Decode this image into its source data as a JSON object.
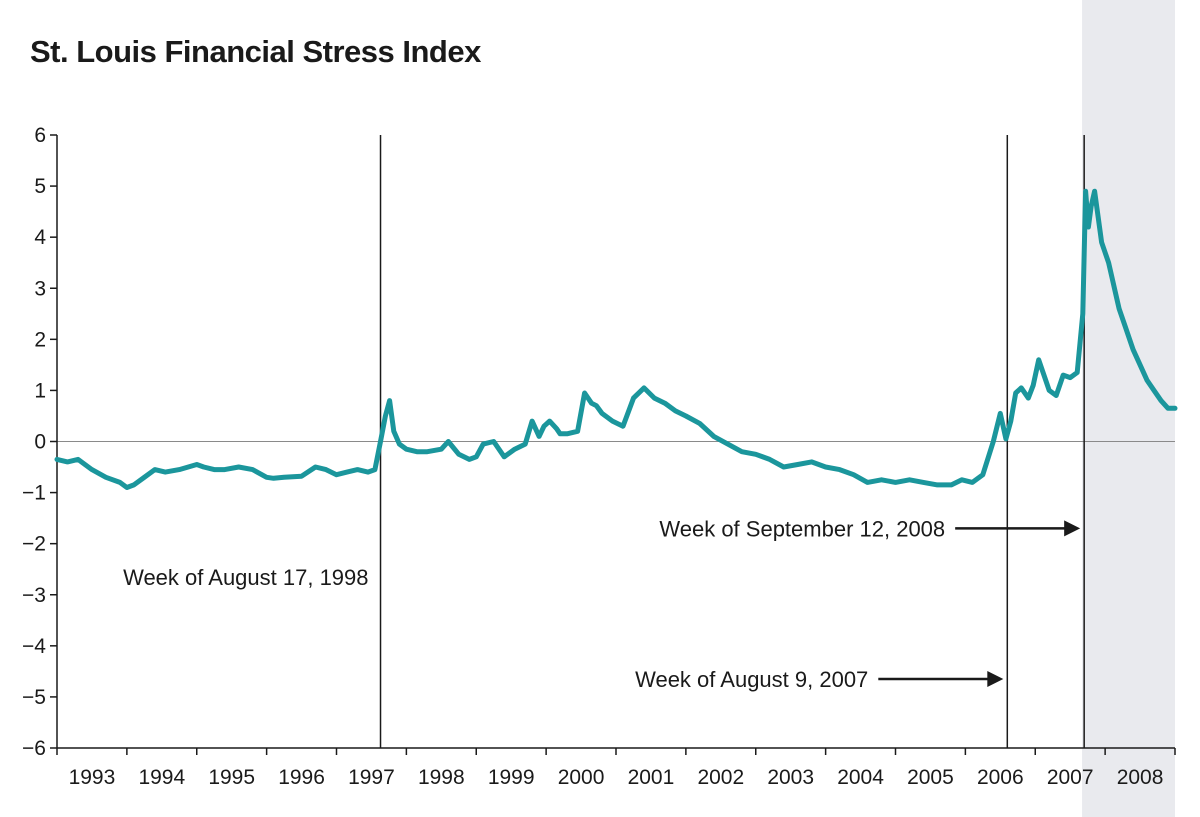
{
  "chart_data": {
    "type": "line",
    "title": "St. Louis Financial Stress Index",
    "xlabel": "",
    "ylabel": "",
    "xlim": [
      1993.0,
      2009.0
    ],
    "ylim": [
      -6,
      6
    ],
    "y_ticks": [
      6,
      5,
      4,
      3,
      2,
      1,
      0,
      -1,
      -2,
      -3,
      -4,
      -5,
      -6
    ],
    "y_tick_labels": [
      "6",
      "5",
      "4",
      "3",
      "2",
      "1",
      "0",
      "−1",
      "−2",
      "−3",
      "−4",
      "−5",
      "−6"
    ],
    "x_tick_labels": [
      "1993",
      "1994",
      "1995",
      "1996",
      "1997",
      "1998",
      "1999",
      "2000",
      "2001",
      "2002",
      "2003",
      "2004",
      "2005",
      "2006",
      "2007",
      "2008"
    ],
    "grid": false,
    "legend": "none",
    "colors": {
      "line": "#1b969c",
      "shade": "#e9eaee",
      "axis": "#1a1a1a",
      "zero_line": "#8a8a8a"
    },
    "shaded_region": {
      "start": 2007.67,
      "end": 2009.0
    },
    "event_lines": [
      {
        "x": 1997.63,
        "label": "Week of August 17, 1998",
        "label_side": "left",
        "label_y": -2.65
      },
      {
        "x": 2006.6,
        "label": "Week of August 9, 2007",
        "label_side": "left",
        "arrow": true,
        "label_y": -4.65
      },
      {
        "x": 2007.7,
        "label": "Week of September 12, 2008",
        "label_side": "left",
        "arrow": true,
        "label_y": -1.7
      }
    ],
    "series": [
      {
        "x": [
          1993.0,
          1993.15,
          1993.3,
          1993.5,
          1993.7,
          1993.9,
          1994.0,
          1994.1,
          1994.25,
          1994.4,
          1994.55,
          1994.75,
          1995.0,
          1995.1,
          1995.25,
          1995.4,
          1995.6,
          1995.8,
          1996.0,
          1996.1,
          1996.25,
          1996.5,
          1996.7,
          1996.85,
          1997.0,
          1997.15,
          1997.3,
          1997.45,
          1997.55,
          1997.63,
          1997.7,
          1997.76,
          1997.82,
          1997.9,
          1998.0,
          1998.15,
          1998.3,
          1998.5,
          1998.6,
          1998.75,
          1998.9,
          1999.0,
          1999.1,
          1999.25,
          1999.4,
          1999.55,
          1999.7,
          1999.8,
          1999.9,
          1999.97,
          2000.05,
          2000.15,
          2000.2,
          2000.3,
          2000.45,
          2000.55,
          2000.65,
          2000.72,
          2000.8,
          2000.95,
          2001.1,
          2001.25,
          2001.4,
          2001.55,
          2001.7,
          2001.85,
          2002.0,
          2002.2,
          2002.4,
          2002.6,
          2002.8,
          2003.0,
          2003.2,
          2003.4,
          2003.6,
          2003.8,
          2004.0,
          2004.2,
          2004.4,
          2004.6,
          2004.8,
          2005.0,
          2005.2,
          2005.4,
          2005.6,
          2005.8,
          2005.95,
          2006.1,
          2006.25,
          2006.4,
          2006.5,
          2006.58,
          2006.65,
          2006.72,
          2006.8,
          2006.9,
          2006.97,
          2007.05,
          2007.15,
          2007.2,
          2007.3,
          2007.4,
          2007.5,
          2007.6,
          2007.68,
          2007.72,
          2007.76,
          2007.8,
          2007.85,
          2007.9,
          2007.95,
          2008.0,
          2008.05,
          2008.1,
          2008.15,
          2008.2,
          2008.3,
          2008.4,
          2008.5,
          2008.6,
          2008.7,
          2008.8,
          2008.9,
          2009.0
        ],
        "y": [
          -0.35,
          -0.4,
          -0.35,
          -0.55,
          -0.7,
          -0.8,
          -0.9,
          -0.85,
          -0.7,
          -0.55,
          -0.6,
          -0.55,
          -0.45,
          -0.5,
          -0.55,
          -0.55,
          -0.5,
          -0.55,
          -0.7,
          -0.72,
          -0.7,
          -0.68,
          -0.5,
          -0.55,
          -0.65,
          -0.6,
          -0.55,
          -0.6,
          -0.55,
          0.0,
          0.5,
          0.8,
          0.2,
          -0.05,
          -0.15,
          -0.2,
          -0.2,
          -0.15,
          0.0,
          -0.25,
          -0.35,
          -0.3,
          -0.05,
          0.0,
          -0.3,
          -0.15,
          -0.05,
          0.4,
          0.1,
          0.3,
          0.4,
          0.25,
          0.15,
          0.15,
          0.2,
          0.95,
          0.75,
          0.7,
          0.55,
          0.4,
          0.3,
          0.85,
          1.05,
          0.85,
          0.75,
          0.6,
          0.5,
          0.35,
          0.1,
          -0.05,
          -0.2,
          -0.25,
          -0.35,
          -0.5,
          -0.45,
          -0.4,
          -0.5,
          -0.55,
          -0.65,
          -0.8,
          -0.75,
          -0.8,
          -0.75,
          -0.8,
          -0.85,
          -0.85,
          -0.75,
          -0.8,
          -0.65,
          0.0,
          0.55,
          0.05,
          0.4,
          0.95,
          1.05,
          0.85,
          1.1,
          1.6,
          1.2,
          1.0,
          0.9,
          1.3,
          1.25,
          1.35,
          2.5,
          4.9,
          4.2,
          4.6,
          4.9,
          4.4,
          3.9,
          3.7,
          3.5,
          3.2,
          2.9,
          2.6,
          2.2,
          1.8,
          1.5,
          1.2,
          1.0,
          0.8,
          0.65,
          0.65
        ]
      }
    ]
  }
}
